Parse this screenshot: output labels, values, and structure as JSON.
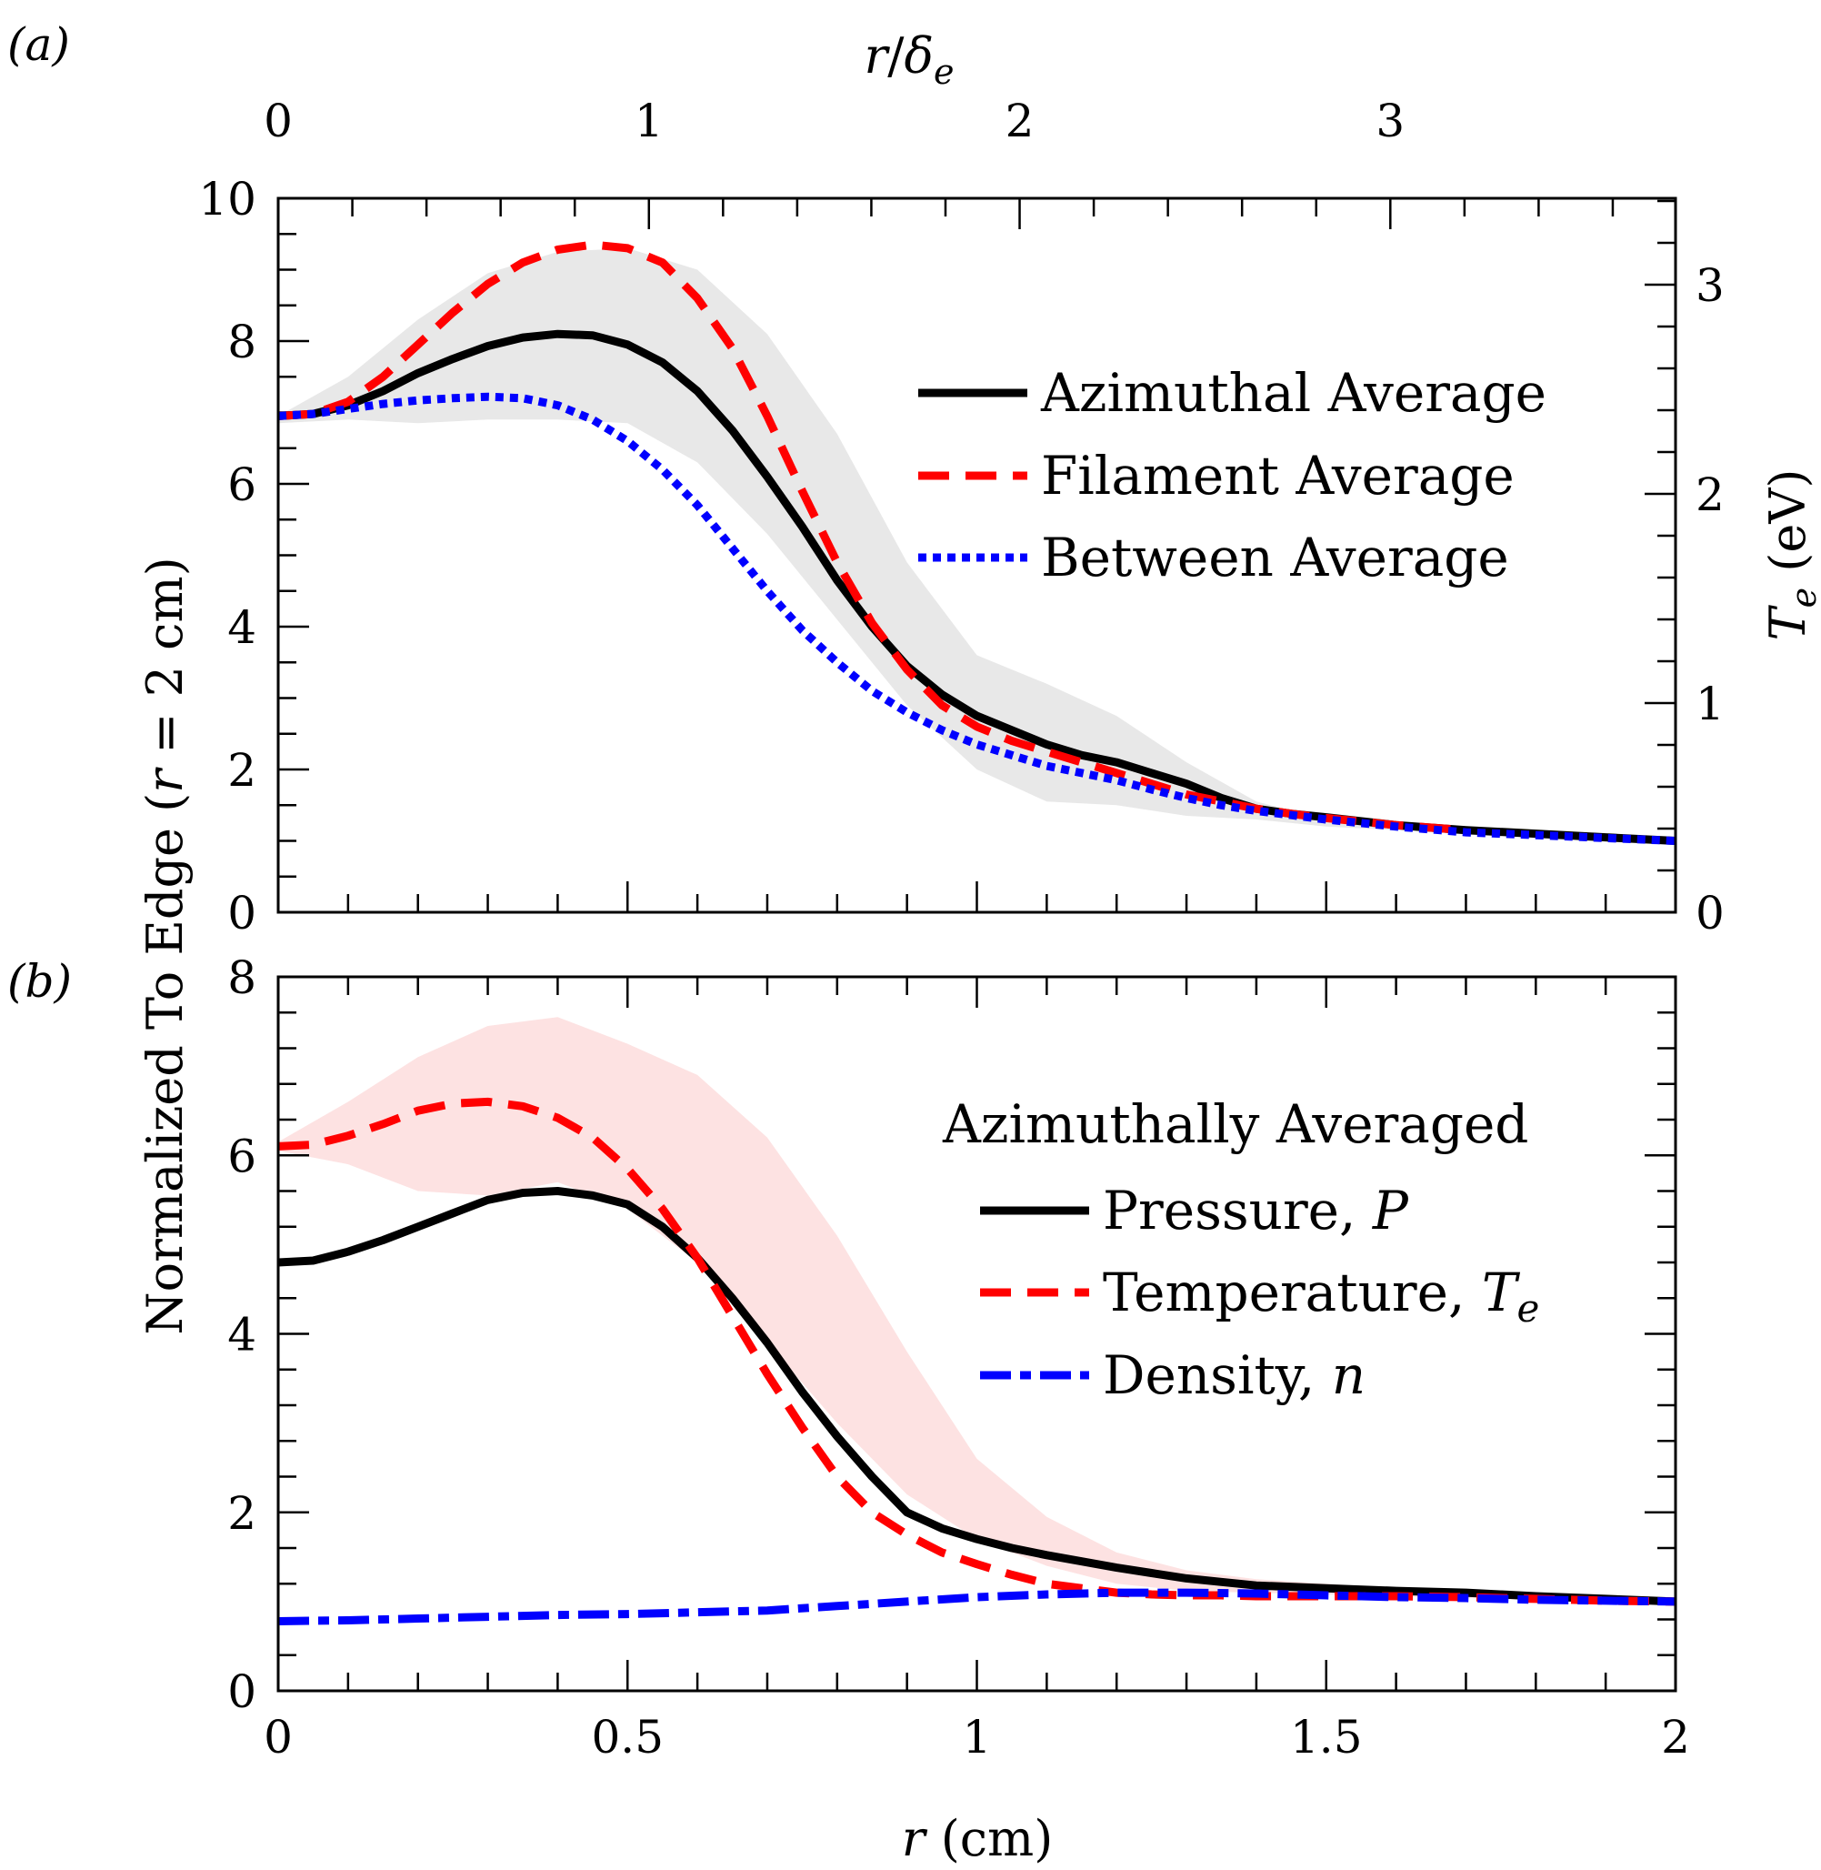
{
  "chart_data": [
    {
      "panel": "(a)",
      "type": "line",
      "xlabel": "r (cm)",
      "ylabel": "Normalized To Edge (r = 2 cm)",
      "xlim": [
        0,
        2
      ],
      "ylim": [
        0,
        10
      ],
      "x_ticks": [
        "0",
        "0.5",
        "1",
        "1.5",
        "2"
      ],
      "y_ticks": [
        "0",
        "2",
        "4",
        "6",
        "8",
        "10"
      ],
      "top_axis": {
        "label": "r/δe",
        "ticks": [
          "0",
          "1",
          "2",
          "3"
        ],
        "tick_values": [
          0,
          1,
          2,
          3
        ],
        "scale_cm_per_unit": 0.5306
      },
      "right_axis": {
        "label": "Te (eV)",
        "ticks": [
          "0",
          "1",
          "2",
          "3"
        ],
        "tick_values": [
          0,
          1,
          2,
          3
        ],
        "normalized_per_unit": 2.93
      },
      "band": {
        "name": "spread",
        "color": "#e8e8e8",
        "x": [
          0,
          0.1,
          0.2,
          0.3,
          0.4,
          0.5,
          0.6,
          0.7,
          0.8,
          0.9,
          1.0,
          1.1,
          1.2,
          1.3,
          1.4,
          1.5,
          1.6,
          1.7,
          1.8,
          1.9,
          2.0
        ],
        "upper": [
          6.95,
          7.5,
          8.3,
          8.95,
          9.25,
          9.3,
          9.0,
          8.1,
          6.7,
          4.9,
          3.6,
          3.2,
          2.75,
          2.1,
          1.55,
          1.3,
          1.2,
          1.15,
          1.1,
          1.05,
          1.0
        ],
        "lower": [
          6.85,
          6.9,
          6.85,
          6.9,
          6.9,
          6.85,
          6.3,
          5.3,
          4.1,
          2.9,
          2.0,
          1.55,
          1.5,
          1.35,
          1.3,
          1.2,
          1.15,
          1.1,
          1.05,
          1.0,
          1.0
        ]
      },
      "series": [
        {
          "name": "Azimuthal Average",
          "color": "#000000",
          "style": "solid",
          "x": [
            0,
            0.05,
            0.1,
            0.15,
            0.2,
            0.25,
            0.3,
            0.35,
            0.4,
            0.45,
            0.5,
            0.55,
            0.6,
            0.65,
            0.7,
            0.75,
            0.8,
            0.85,
            0.9,
            0.95,
            1.0,
            1.05,
            1.1,
            1.15,
            1.2,
            1.25,
            1.3,
            1.35,
            1.4,
            1.45,
            1.5,
            1.6,
            1.7,
            1.8,
            1.9,
            2.0
          ],
          "values": [
            6.95,
            6.98,
            7.1,
            7.3,
            7.55,
            7.75,
            7.93,
            8.05,
            8.1,
            8.08,
            7.95,
            7.7,
            7.3,
            6.75,
            6.1,
            5.4,
            4.65,
            4.0,
            3.45,
            3.05,
            2.75,
            2.55,
            2.35,
            2.2,
            2.1,
            1.95,
            1.8,
            1.6,
            1.45,
            1.38,
            1.33,
            1.22,
            1.15,
            1.1,
            1.05,
            1.0
          ]
        },
        {
          "name": "Filament Average",
          "color": "#ff0000",
          "style": "dashed",
          "x": [
            0,
            0.05,
            0.1,
            0.15,
            0.2,
            0.25,
            0.3,
            0.35,
            0.4,
            0.45,
            0.5,
            0.55,
            0.6,
            0.65,
            0.7,
            0.75,
            0.8,
            0.85,
            0.9,
            0.95,
            1.0,
            1.05,
            1.1,
            1.15,
            1.2,
            1.25,
            1.3,
            1.35,
            1.4,
            1.45,
            1.5,
            1.6,
            1.7
          ],
          "values": [
            6.95,
            6.98,
            7.15,
            7.5,
            7.95,
            8.4,
            8.8,
            9.1,
            9.28,
            9.35,
            9.3,
            9.1,
            8.6,
            7.9,
            6.95,
            5.9,
            4.9,
            4.05,
            3.4,
            2.9,
            2.6,
            2.4,
            2.25,
            2.1,
            1.95,
            1.8,
            1.65,
            1.55,
            1.45,
            1.38,
            1.32,
            1.22,
            1.15
          ]
        },
        {
          "name": "Between Average",
          "color": "#0000ff",
          "style": "dotted",
          "x": [
            0,
            0.05,
            0.1,
            0.15,
            0.2,
            0.25,
            0.3,
            0.35,
            0.4,
            0.45,
            0.5,
            0.55,
            0.6,
            0.65,
            0.7,
            0.75,
            0.8,
            0.85,
            0.9,
            0.95,
            1.0,
            1.05,
            1.1,
            1.15,
            1.2,
            1.25,
            1.3,
            1.35,
            1.4,
            1.45,
            1.5,
            1.6,
            1.7,
            1.8,
            1.9,
            2.0
          ],
          "values": [
            6.95,
            6.98,
            7.05,
            7.12,
            7.17,
            7.2,
            7.22,
            7.2,
            7.1,
            6.9,
            6.6,
            6.2,
            5.7,
            5.1,
            4.5,
            3.95,
            3.5,
            3.1,
            2.8,
            2.55,
            2.35,
            2.2,
            2.05,
            1.95,
            1.85,
            1.72,
            1.6,
            1.5,
            1.42,
            1.36,
            1.3,
            1.2,
            1.12,
            1.08,
            1.04,
            1.0
          ]
        }
      ]
    },
    {
      "panel": "(b)",
      "type": "line",
      "xlabel": "r (cm)",
      "ylabel": "Normalized To Edge (r = 2 cm)",
      "xlim": [
        0,
        2
      ],
      "ylim": [
        0,
        8
      ],
      "x_ticks": [
        "0",
        "0.5",
        "1",
        "1.5",
        "2"
      ],
      "y_ticks": [
        "0",
        "2",
        "4",
        "6",
        "8"
      ],
      "legend_title": "Azimuthally Averaged",
      "band": {
        "name": "temperature spread",
        "color": "#fde2e2",
        "x": [
          0,
          0.1,
          0.2,
          0.3,
          0.4,
          0.5,
          0.6,
          0.7,
          0.8,
          0.9,
          1.0,
          1.1,
          1.2,
          1.3,
          1.4,
          1.5,
          1.6,
          1.7,
          1.8,
          1.9,
          2.0
        ],
        "upper": [
          6.15,
          6.6,
          7.1,
          7.45,
          7.55,
          7.25,
          6.9,
          6.2,
          5.1,
          3.8,
          2.6,
          1.95,
          1.55,
          1.35,
          1.25,
          1.2,
          1.15,
          1.1,
          1.07,
          1.03,
          1.0
        ],
        "lower": [
          6.05,
          5.9,
          5.6,
          5.55,
          5.7,
          5.4,
          4.8,
          3.9,
          3.0,
          2.2,
          1.7,
          1.4,
          1.2,
          1.12,
          1.1,
          1.08,
          1.06,
          1.04,
          1.02,
          1.0,
          1.0
        ]
      },
      "series": [
        {
          "name": "Pressure, P",
          "color": "#000000",
          "style": "solid",
          "x": [
            0,
            0.05,
            0.1,
            0.15,
            0.2,
            0.25,
            0.3,
            0.35,
            0.4,
            0.45,
            0.5,
            0.55,
            0.6,
            0.65,
            0.7,
            0.75,
            0.8,
            0.85,
            0.9,
            0.95,
            1.0,
            1.05,
            1.1,
            1.15,
            1.2,
            1.25,
            1.3,
            1.35,
            1.4,
            1.5,
            1.6,
            1.7,
            1.8,
            1.9,
            2.0
          ],
          "values": [
            4.8,
            4.82,
            4.92,
            5.05,
            5.2,
            5.35,
            5.5,
            5.58,
            5.6,
            5.55,
            5.45,
            5.2,
            4.85,
            4.4,
            3.9,
            3.35,
            2.85,
            2.4,
            2.0,
            1.82,
            1.7,
            1.6,
            1.52,
            1.45,
            1.38,
            1.32,
            1.26,
            1.22,
            1.18,
            1.15,
            1.12,
            1.1,
            1.06,
            1.03,
            1.0
          ]
        },
        {
          "name": "Temperature, Te",
          "color": "#ff0000",
          "style": "dashed",
          "x": [
            0,
            0.05,
            0.1,
            0.15,
            0.2,
            0.25,
            0.3,
            0.35,
            0.4,
            0.45,
            0.5,
            0.55,
            0.6,
            0.65,
            0.7,
            0.75,
            0.8,
            0.85,
            0.9,
            0.95,
            1.0,
            1.05,
            1.1,
            1.15,
            1.2,
            1.25,
            1.3,
            1.35,
            1.4,
            1.5,
            1.6,
            1.7,
            1.8,
            1.9,
            2.0
          ],
          "values": [
            6.1,
            6.12,
            6.22,
            6.35,
            6.5,
            6.58,
            6.6,
            6.55,
            6.42,
            6.2,
            5.85,
            5.4,
            4.85,
            4.2,
            3.55,
            2.95,
            2.4,
            2.0,
            1.75,
            1.55,
            1.42,
            1.3,
            1.2,
            1.15,
            1.1,
            1.08,
            1.07,
            1.07,
            1.06,
            1.06,
            1.06,
            1.05,
            1.03,
            1.01,
            1.0
          ]
        },
        {
          "name": "Density, n",
          "color": "#0000ff",
          "style": "dashdot",
          "x": [
            0,
            0.1,
            0.2,
            0.3,
            0.4,
            0.5,
            0.6,
            0.7,
            0.8,
            0.9,
            1.0,
            1.1,
            1.2,
            1.3,
            1.4,
            1.5,
            1.6,
            1.7,
            1.8,
            1.9,
            2.0
          ],
          "values": [
            0.78,
            0.79,
            0.81,
            0.83,
            0.85,
            0.86,
            0.88,
            0.9,
            0.95,
            1.0,
            1.05,
            1.08,
            1.1,
            1.1,
            1.09,
            1.07,
            1.05,
            1.04,
            1.02,
            1.01,
            1.0
          ]
        }
      ]
    }
  ]
}
